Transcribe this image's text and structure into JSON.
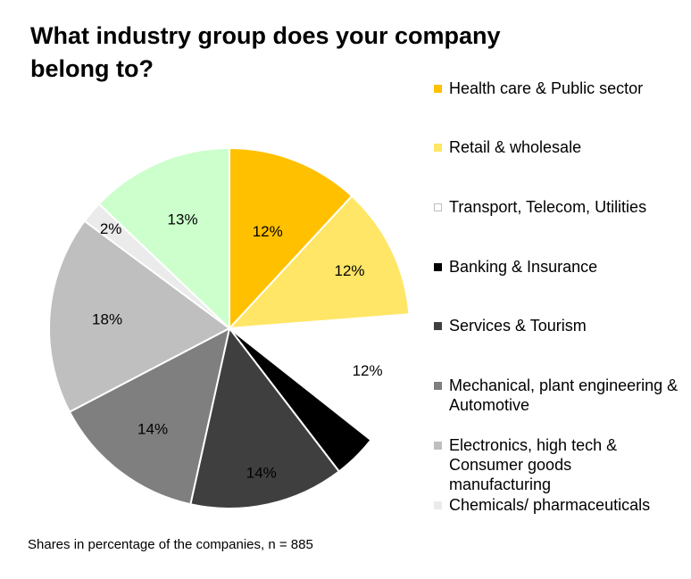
{
  "chart_data": {
    "type": "pie",
    "title": "What industry group does your company belong to?",
    "note": "Shares in percentage of the companies, n = 885",
    "slices": [
      {
        "label": "Health care & Public sector",
        "value": 12,
        "display": "12%",
        "color": "#FFC000"
      },
      {
        "label": "Retail & wholesale",
        "value": 12,
        "display": "12%",
        "color": "#FFE666"
      },
      {
        "label": "Transport, Telecom, Utilities",
        "value": 12,
        "display": "12%",
        "color": "#FFFFFF"
      },
      {
        "label": "Banking & Insurance",
        "value": 4,
        "display": "4%",
        "color": "#000000"
      },
      {
        "label": "Services & Tourism",
        "value": 14,
        "display": "14%",
        "color": "#3F3F3F"
      },
      {
        "label": "Mechanical, plant engineering & Automotive",
        "value": 14,
        "display": "14%",
        "color": "#7F7F7F"
      },
      {
        "label": "Electronics, high tech & Consumer goods manufacturing",
        "value": 18,
        "display": "18%",
        "color": "#BFBFBF"
      },
      {
        "label": "Chemicals/ pharmaceuticals",
        "value": 2,
        "display": "2%",
        "color": "#EBEBEB"
      },
      {
        "label": "",
        "value": 13,
        "display": "13%",
        "color": "#CCFFCC"
      }
    ]
  }
}
